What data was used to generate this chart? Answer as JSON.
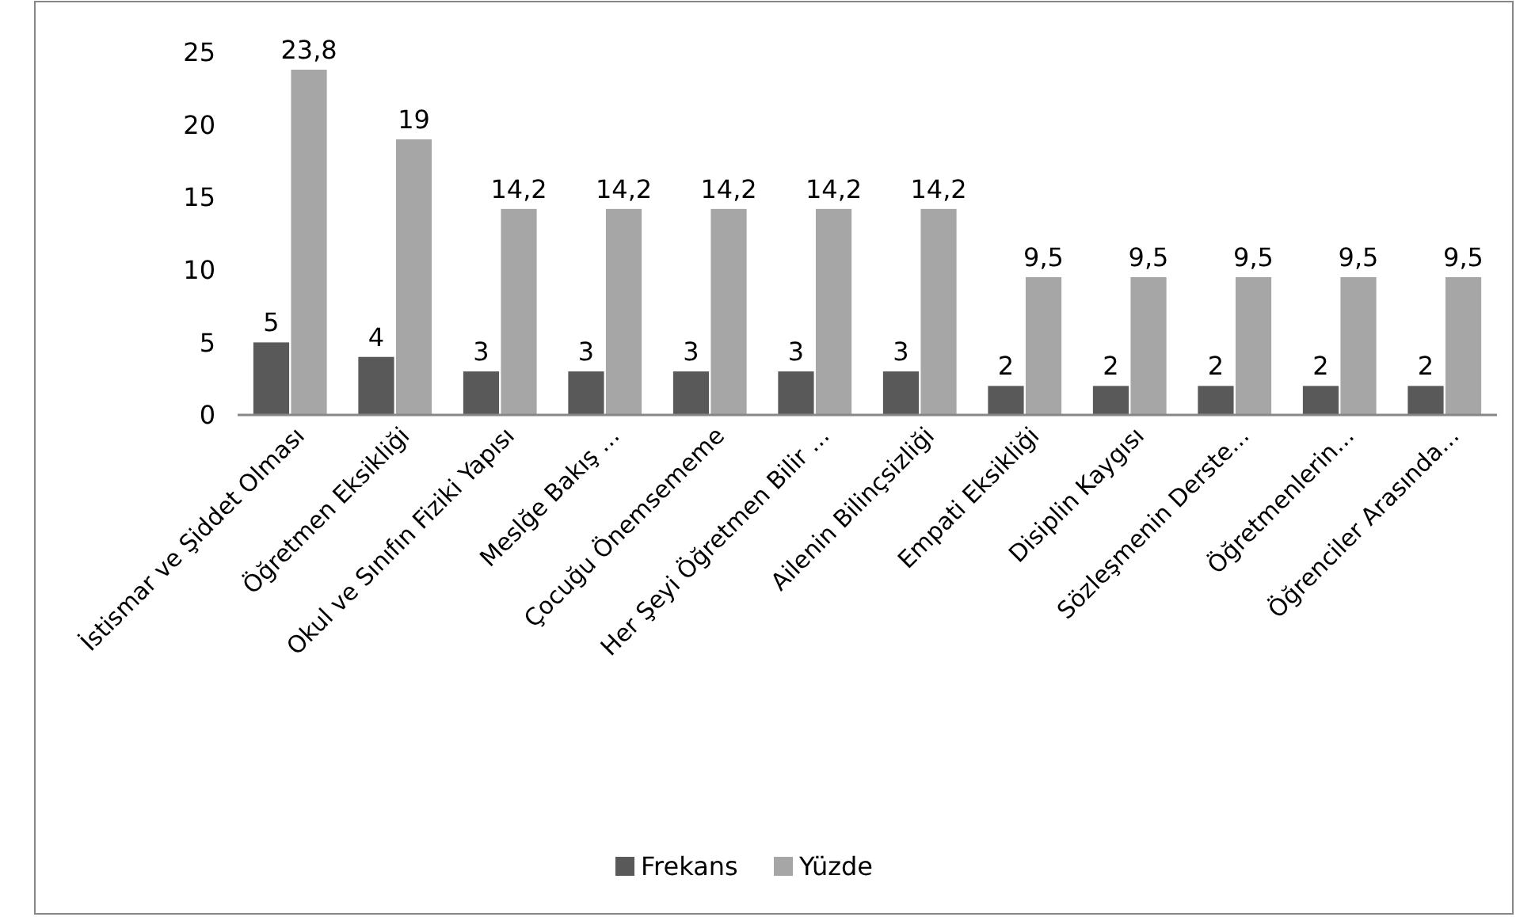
{
  "chart_data": {
    "type": "bar",
    "categories": [
      "İstismar ve Şiddet Olması",
      "Öğretmen Eksikliği",
      "Okul ve Sınıfın Fiziki Yapısı",
      "Meslğe Bakış ...",
      "Çocuğu Önemsememe",
      "Her Şeyi Öğretmen Bilir ...",
      "Ailenin Bilinçsizliği",
      "Empati Eksikliği",
      "Disiplin Kaygısı",
      "Sözleşmenin Derste...",
      "Öğretmenlerin...",
      "Öğrenciler Arasında..."
    ],
    "series": [
      {
        "name": "Frekans",
        "color": "#595959",
        "values": [
          5,
          4,
          3,
          3,
          3,
          3,
          3,
          2,
          2,
          2,
          2,
          2
        ]
      },
      {
        "name": "Yüzde",
        "color": "#a6a6a6",
        "values": [
          23.8,
          19,
          14.2,
          14.2,
          14.2,
          14.2,
          14.2,
          9.5,
          9.5,
          9.5,
          9.5,
          9.5
        ],
        "value_labels": [
          "23,8",
          "19",
          "14,2",
          "14,2",
          "14,2",
          "14,2",
          "14,2",
          "9,5",
          "9,5",
          "9,5",
          "9,5",
          "9,5"
        ]
      }
    ],
    "ylim": [
      0,
      25
    ],
    "yticks": [
      0,
      5,
      10,
      15,
      20,
      25
    ],
    "data_labels": true,
    "grid": false,
    "legend": "bottom"
  }
}
